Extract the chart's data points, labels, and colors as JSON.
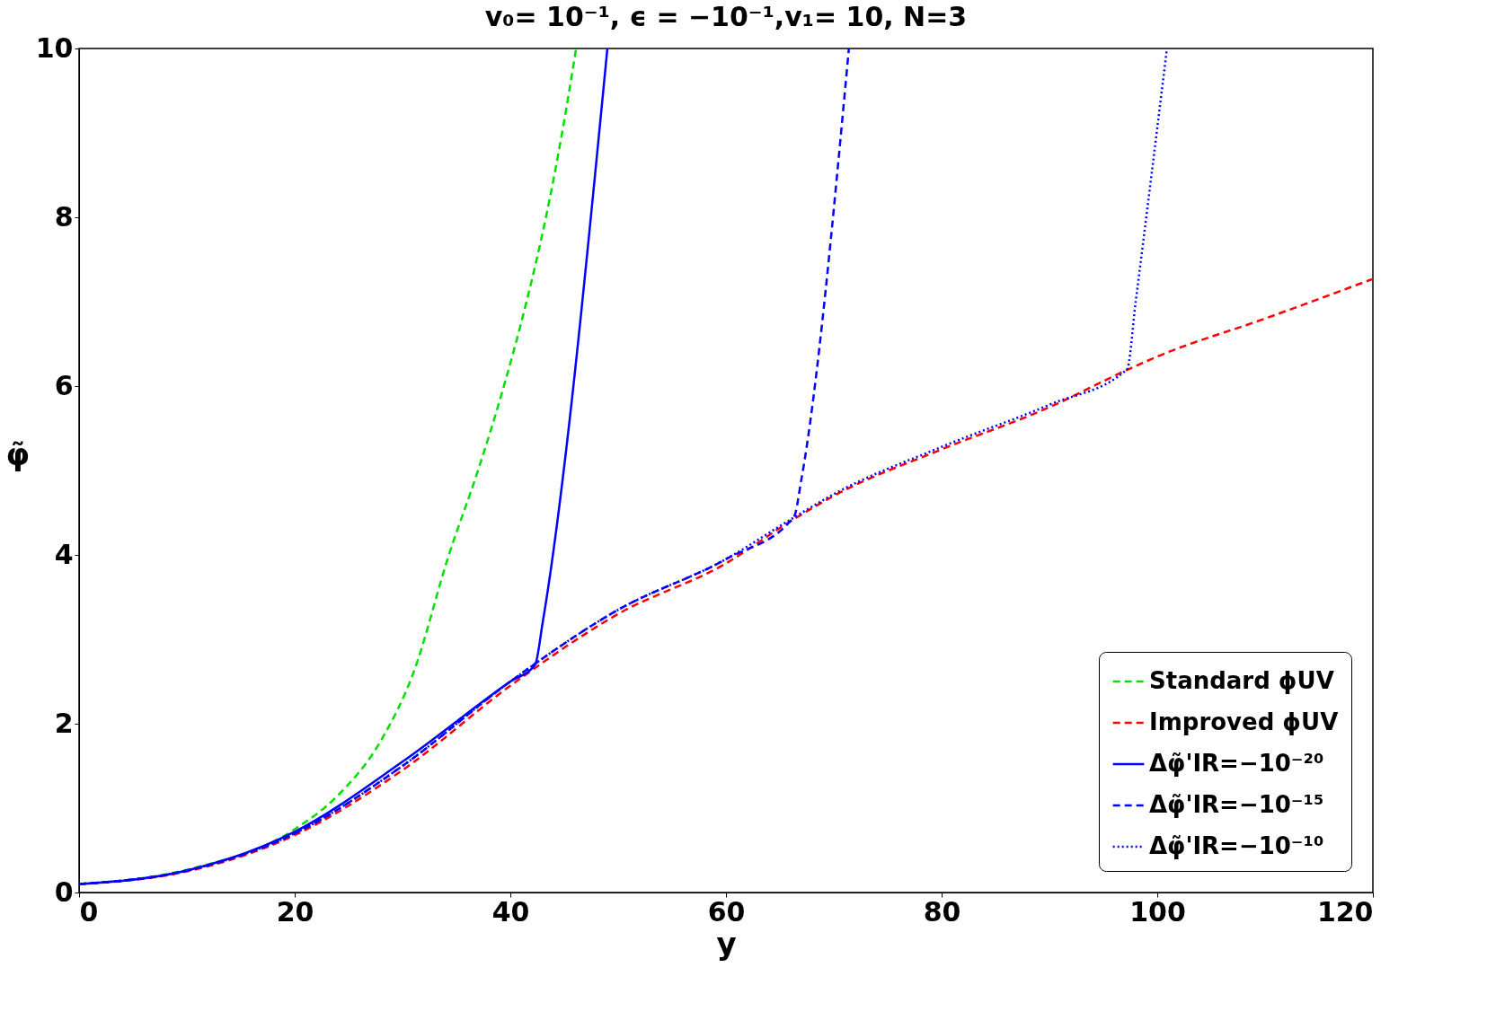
{
  "chart_data": {
    "type": "line",
    "title": "v₀= 10⁻¹, ϵ = −10⁻¹,v₁= 10,  N=3",
    "xlabel": "y",
    "ylabel": "φ̃",
    "xlim": [
      0,
      120
    ],
    "ylim": [
      0,
      10
    ],
    "xticks": [
      0,
      20,
      40,
      60,
      80,
      100,
      120
    ],
    "yticks": [
      0,
      2,
      4,
      6,
      8,
      10
    ],
    "grid": false,
    "legend": "bottom right",
    "series": [
      {
        "name": "Standard ϕUV",
        "color": "#00e000",
        "line_style": "dashed",
        "x": [
          0,
          10,
          20,
          24,
          28,
          31,
          34.3,
          37,
          39.4,
          41.5,
          43.3,
          44.8,
          46.1
        ],
        "values": [
          0.1,
          0.27,
          0.75,
          1.15,
          1.8,
          2.6,
          4,
          5,
          6,
          7,
          8,
          9,
          10
        ]
      },
      {
        "name": "Improved ϕUV",
        "color": "#ff0000",
        "line_style": "dashed",
        "x": [
          0,
          10,
          20,
          30,
          40,
          50,
          60,
          66,
          70,
          80,
          90,
          97,
          100,
          110,
          120
        ],
        "values": [
          0.1,
          0.25,
          0.68,
          1.45,
          2.45,
          3.3,
          3.9,
          4.4,
          4.7,
          5.25,
          5.75,
          6.18,
          6.35,
          6.8,
          7.27
        ]
      },
      {
        "name": "Δφ̃'IR=−10⁻²⁰",
        "color": "#0000ff",
        "line_style": "solid",
        "x": [
          0,
          10,
          20,
          30,
          40,
          42.3,
          43,
          49
        ],
        "values": [
          0.1,
          0.26,
          0.72,
          1.55,
          2.5,
          2.7,
          3.2,
          10
        ]
      },
      {
        "name": "Δφ̃'IR=−10⁻¹⁵",
        "color": "#0000ff",
        "line_style": "dashed",
        "x": [
          0,
          10,
          20,
          30,
          40,
          50,
          60,
          66.3,
          67,
          71.4
        ],
        "values": [
          0.1,
          0.26,
          0.7,
          1.5,
          2.5,
          3.35,
          3.95,
          4.45,
          4.9,
          10
        ]
      },
      {
        "name": "Δφ̃'IR=−10⁻¹⁰",
        "color": "#0000ff",
        "line_style": "dotted",
        "x": [
          0,
          10,
          20,
          30,
          40,
          50,
          60,
          66,
          70,
          80,
          90,
          97.2,
          98,
          100.9
        ],
        "values": [
          0.1,
          0.26,
          0.7,
          1.5,
          2.5,
          3.35,
          3.95,
          4.42,
          4.72,
          5.28,
          5.78,
          6.2,
          7.0,
          10
        ]
      }
    ]
  }
}
